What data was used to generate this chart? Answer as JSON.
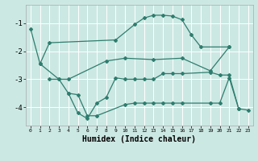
{
  "line_color": "#2e7d6e",
  "marker": "D",
  "markersize": 2.0,
  "linewidth": 0.9,
  "bg_color": "#cce8e3",
  "grid_color": "#ffffff",
  "xlabel": "Humidex (Indice chaleur)",
  "xlabel_fontsize": 7,
  "ytick_labels": [
    "-1",
    "-2",
    "-3",
    "-4"
  ],
  "yticks": [
    -1,
    -2,
    -3,
    -4
  ],
  "xticks": [
    0,
    1,
    2,
    3,
    4,
    5,
    6,
    7,
    8,
    9,
    10,
    11,
    12,
    13,
    14,
    15,
    16,
    17,
    18,
    19,
    20,
    21,
    22,
    23
  ],
  "xlim": [
    -0.5,
    23.5
  ],
  "ylim": [
    -4.65,
    -0.35
  ],
  "lines": [
    {
      "x": [
        0,
        1,
        2,
        9,
        11,
        12,
        13,
        14,
        15,
        16,
        17,
        18,
        21
      ],
      "y": [
        -1.2,
        -2.45,
        -1.7,
        -1.6,
        -1.05,
        -0.82,
        -0.72,
        -0.72,
        -0.75,
        -0.88,
        -1.42,
        -1.85,
        -1.85
      ]
    },
    {
      "x": [
        1,
        3,
        4,
        8,
        10,
        13,
        16,
        19,
        21
      ],
      "y": [
        -2.45,
        -3.0,
        -3.0,
        -2.35,
        -2.25,
        -2.3,
        -2.25,
        -2.7,
        -1.85
      ]
    },
    {
      "x": [
        2,
        3,
        4,
        5,
        6,
        7,
        8,
        9,
        10,
        11,
        12,
        13,
        14,
        15,
        16,
        19,
        20,
        21,
        22
      ],
      "y": [
        -3.0,
        -3.0,
        -3.5,
        -4.2,
        -4.4,
        -3.85,
        -3.65,
        -2.95,
        -3.0,
        -3.0,
        -3.0,
        -3.0,
        -2.8,
        -2.8,
        -2.8,
        -2.75,
        -2.85,
        -2.85,
        -4.05
      ]
    },
    {
      "x": [
        4,
        5,
        6,
        7,
        10,
        11,
        12,
        13,
        14,
        15,
        16,
        19,
        20,
        21,
        22,
        23
      ],
      "y": [
        -3.5,
        -3.55,
        -4.3,
        -4.3,
        -3.9,
        -3.85,
        -3.85,
        -3.85,
        -3.85,
        -3.85,
        -3.85,
        -3.85,
        -3.85,
        -2.95,
        -4.05,
        -4.1
      ]
    }
  ]
}
